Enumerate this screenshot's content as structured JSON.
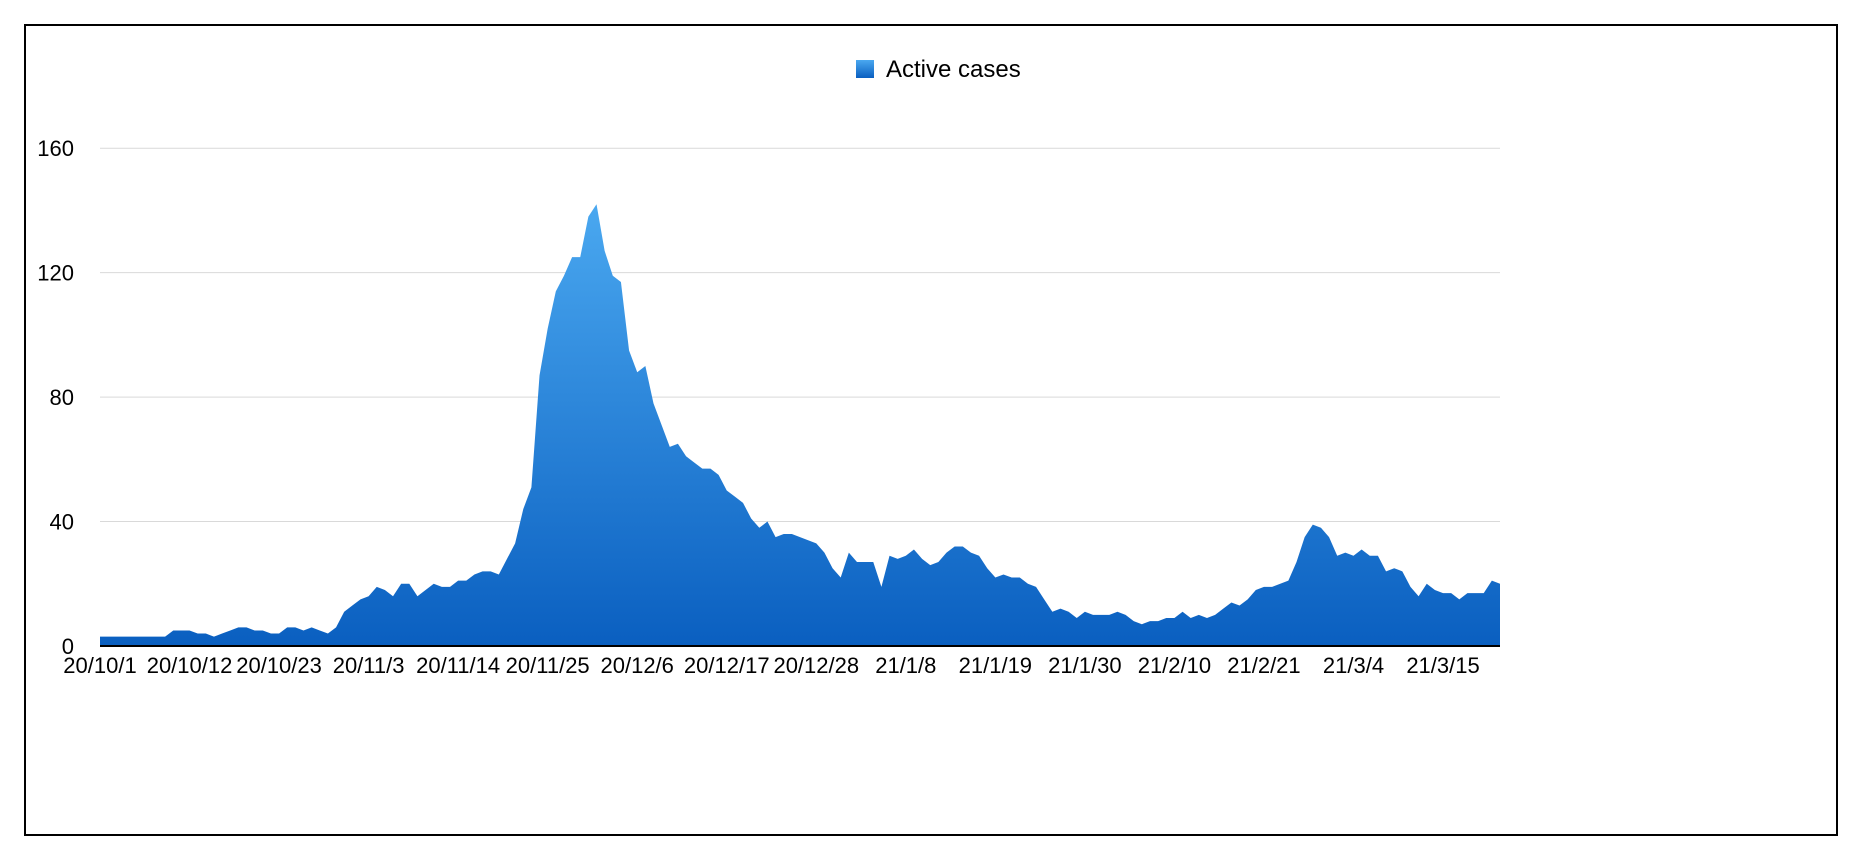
{
  "chart_data": {
    "type": "area",
    "legend": {
      "placement": "top-center",
      "series_name": "Active cases",
      "color_top": "#4aa8f0",
      "color_bottom": "#0a5fc0"
    },
    "xlabel": "",
    "ylabel": "",
    "ylim": [
      0,
      180
    ],
    "y_ticks": [
      0,
      40,
      80,
      120,
      160
    ],
    "grid": true,
    "x_tick_labels": [
      "20/10/1",
      "20/10/12",
      "20/10/23",
      "20/11/3",
      "20/11/14",
      "20/11/25",
      "20/12/6",
      "20/12/17",
      "20/12/28",
      "21/1/8",
      "21/1/19",
      "21/1/30",
      "21/2/10",
      "21/2/21",
      "21/3/4",
      "21/3/15"
    ],
    "x_start": "2020-10-01",
    "x_end": "2021-03-23",
    "series": [
      {
        "name": "Active cases",
        "color": "#1a78d6",
        "values": [
          3,
          3,
          3,
          3,
          3,
          3,
          3,
          3,
          3,
          5,
          5,
          5,
          4,
          4,
          3,
          4,
          5,
          6,
          6,
          5,
          5,
          4,
          4,
          6,
          6,
          5,
          6,
          5,
          4,
          6,
          11,
          13,
          15,
          16,
          19,
          18,
          16,
          20,
          20,
          16,
          18,
          20,
          19,
          19,
          21,
          21,
          23,
          24,
          24,
          23,
          28,
          33,
          44,
          51,
          87,
          102,
          114,
          119,
          125,
          125,
          138,
          142,
          127,
          119,
          117,
          95,
          88,
          90,
          78,
          71,
          64,
          65,
          61,
          59,
          57,
          57,
          55,
          50,
          48,
          46,
          41,
          38,
          40,
          35,
          36,
          36,
          35,
          34,
          33,
          30,
          25,
          22,
          30,
          27,
          27,
          27,
          19,
          29,
          28,
          29,
          31,
          28,
          26,
          27,
          30,
          32,
          32,
          30,
          29,
          25,
          22,
          23,
          22,
          22,
          20,
          19,
          15,
          11,
          12,
          11,
          9,
          11,
          10,
          10,
          10,
          11,
          10,
          8,
          7,
          8,
          8,
          9,
          9,
          11,
          9,
          10,
          9,
          10,
          12,
          14,
          13,
          15,
          18,
          19,
          19,
          20,
          21,
          27,
          35,
          39,
          38,
          35,
          29,
          30,
          29,
          31,
          29,
          29,
          24,
          25,
          24,
          19,
          16,
          20,
          18,
          17,
          17,
          15,
          17,
          17,
          17,
          21,
          20
        ]
      }
    ]
  }
}
